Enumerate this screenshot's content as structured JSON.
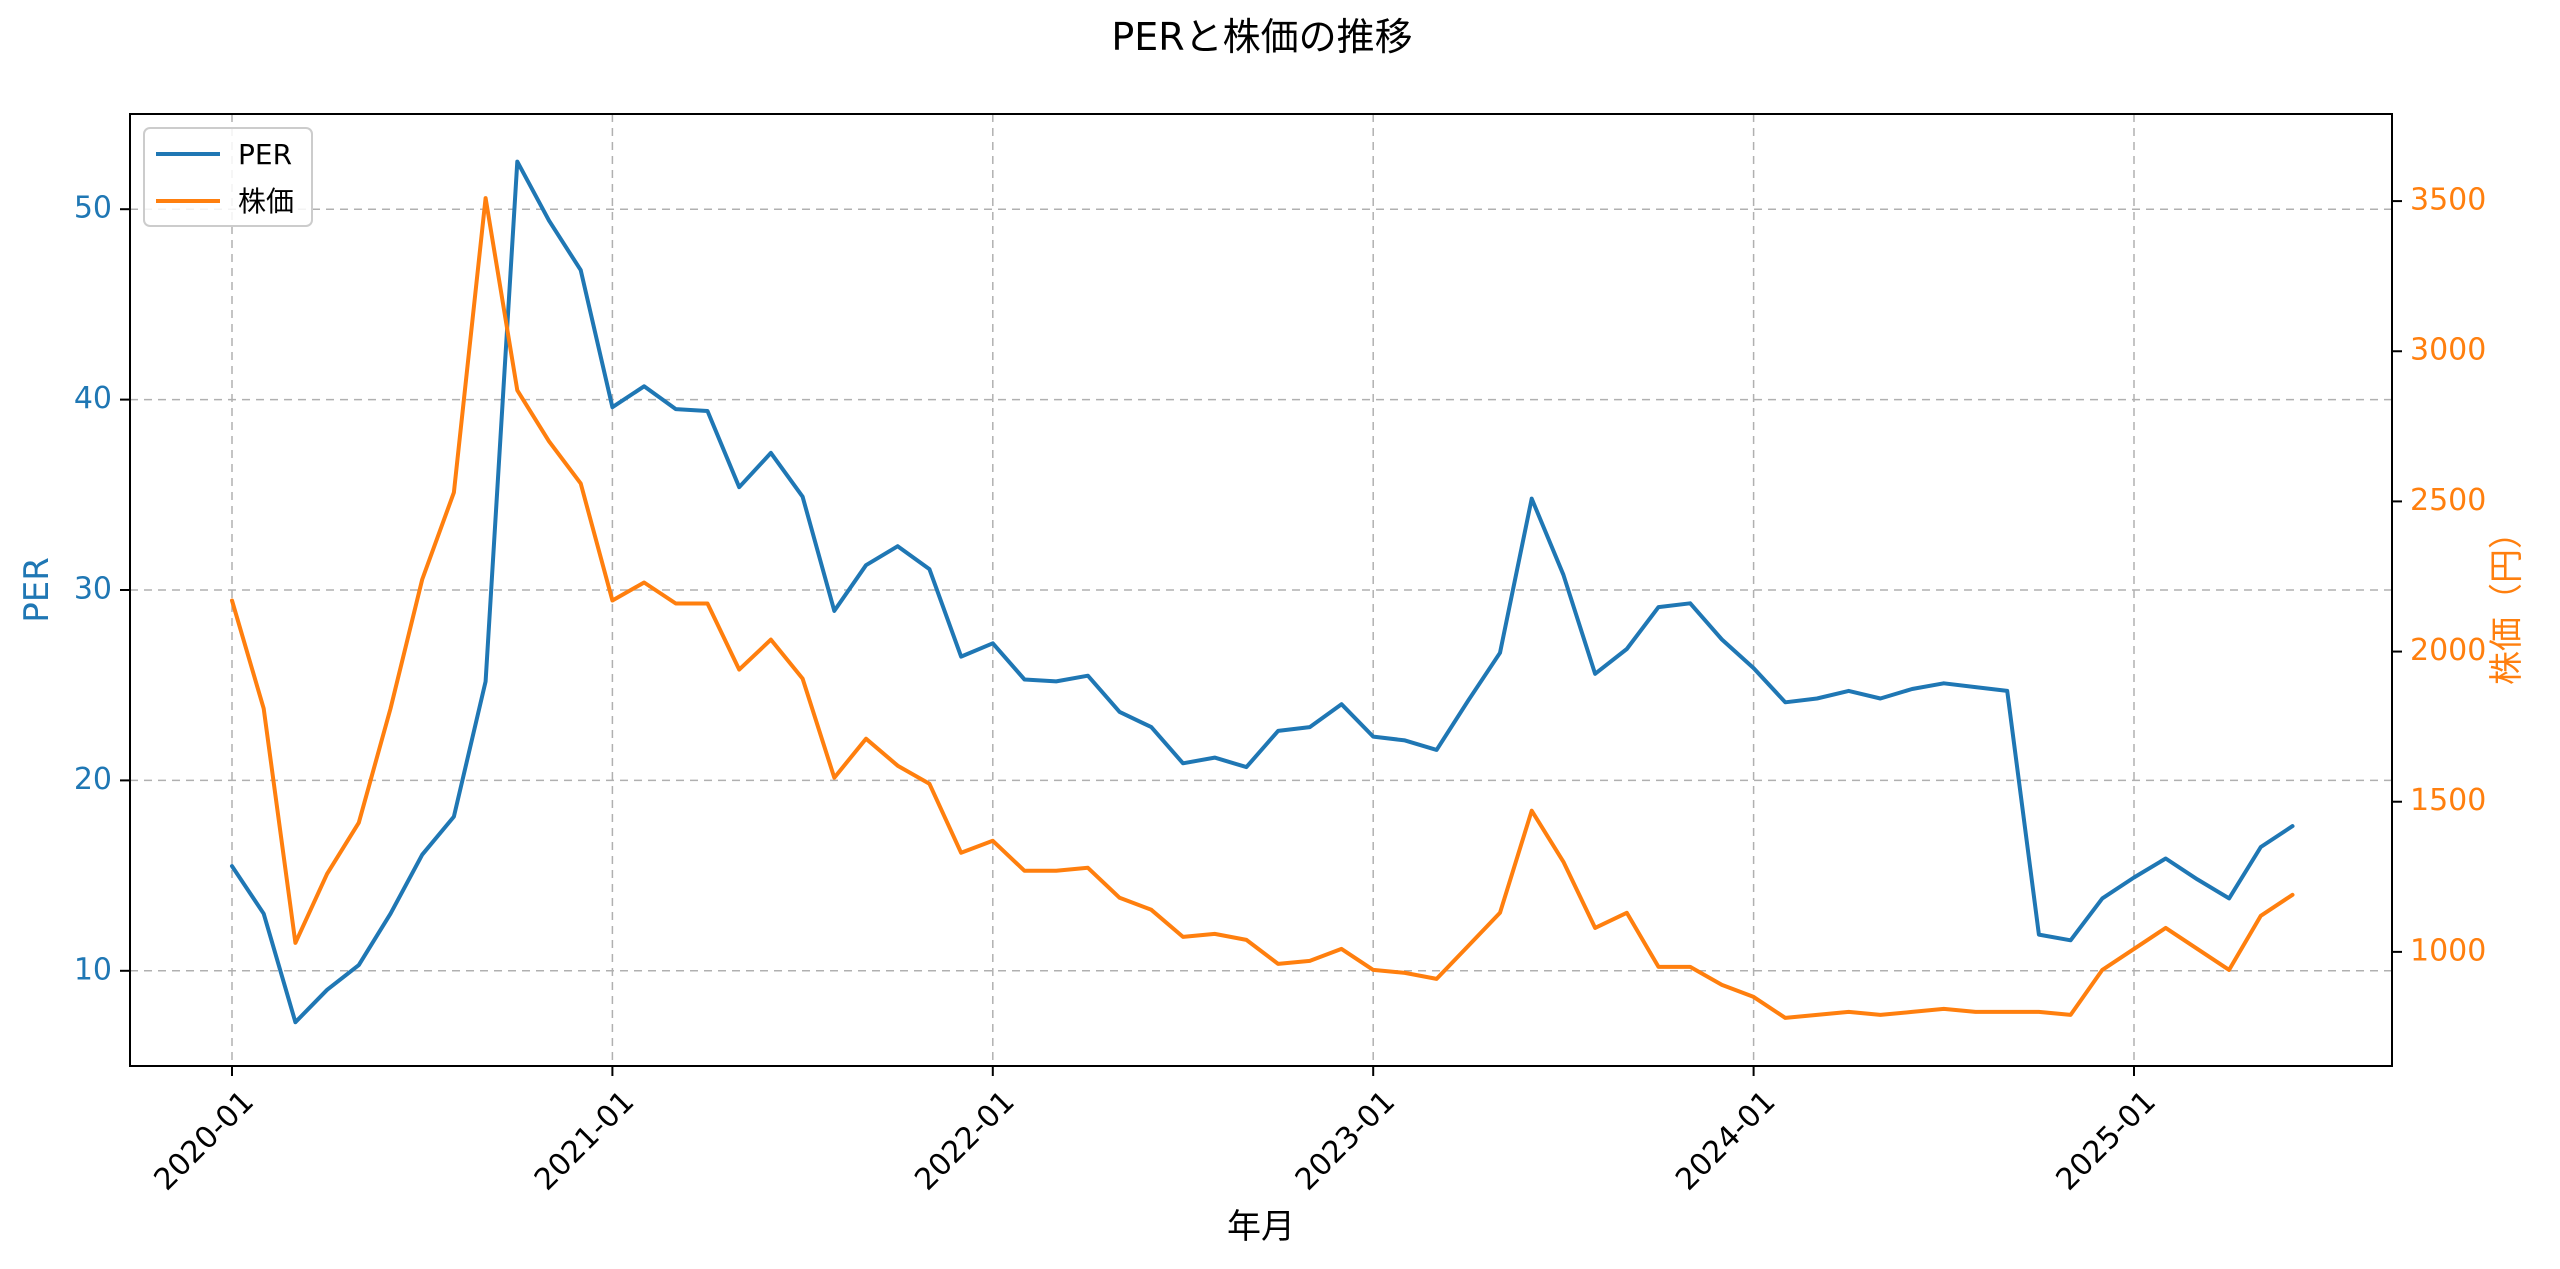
{
  "chart_data": {
    "type": "line",
    "title": "PERと株価の推移",
    "xlabel": "年月",
    "ylabel_left": "PER",
    "ylabel_right": "株価（円）",
    "ylim_left": [
      5,
      55
    ],
    "ylim_right": [
      620,
      3790
    ],
    "yticks_left": [
      10,
      20,
      30,
      40,
      50
    ],
    "yticks_right": [
      1000,
      1500,
      2000,
      2500,
      3000,
      3500
    ],
    "x_start": "2020-01",
    "xticks": [
      "2020-01",
      "2021-01",
      "2022-01",
      "2023-01",
      "2024-01",
      "2025-01"
    ],
    "grid": true,
    "legend_position": "top-left",
    "colors": {
      "per": "#1f77b4",
      "price": "#ff7f0e",
      "grid": "#b0b0b0",
      "axis": "#000000"
    },
    "series": [
      {
        "name": "PER",
        "axis": "left",
        "values": [
          15.5,
          13.0,
          7.3,
          9.0,
          10.3,
          13.0,
          16.1,
          18.1,
          25.2,
          52.5,
          49.4,
          46.8,
          39.6,
          40.7,
          39.5,
          39.4,
          35.4,
          37.2,
          34.9,
          28.9,
          31.3,
          32.3,
          31.1,
          26.5,
          27.2,
          25.3,
          25.2,
          25.5,
          23.6,
          22.8,
          20.9,
          21.2,
          20.7,
          22.6,
          22.8,
          24.0,
          22.3,
          22.1,
          21.6,
          24.2,
          26.7,
          34.8,
          30.8,
          25.6,
          26.9,
          29.1,
          29.3,
          27.4,
          25.9,
          24.1,
          24.3,
          24.7,
          24.3,
          24.8,
          25.1,
          24.9,
          24.7,
          11.9,
          11.6,
          13.8,
          14.9,
          15.9,
          14.8,
          13.8,
          16.5,
          17.6
        ]
      },
      {
        "name": "株価",
        "axis": "right",
        "values": [
          2170,
          1810,
          1030,
          1260,
          1430,
          1810,
          2240,
          2530,
          3510,
          2870,
          2700,
          2560,
          2170,
          2230,
          2160,
          2160,
          1940,
          2040,
          1910,
          1580,
          1710,
          1620,
          1560,
          1330,
          1370,
          1270,
          1270,
          1280,
          1180,
          1140,
          1050,
          1060,
          1040,
          960,
          970,
          1010,
          940,
          930,
          910,
          1020,
          1130,
          1470,
          1300,
          1080,
          1130,
          950,
          950,
          890,
          850,
          780,
          790,
          800,
          790,
          800,
          810,
          800,
          800,
          800,
          790,
          940,
          1010,
          1080,
          1010,
          940,
          1120,
          1190
        ]
      }
    ]
  }
}
